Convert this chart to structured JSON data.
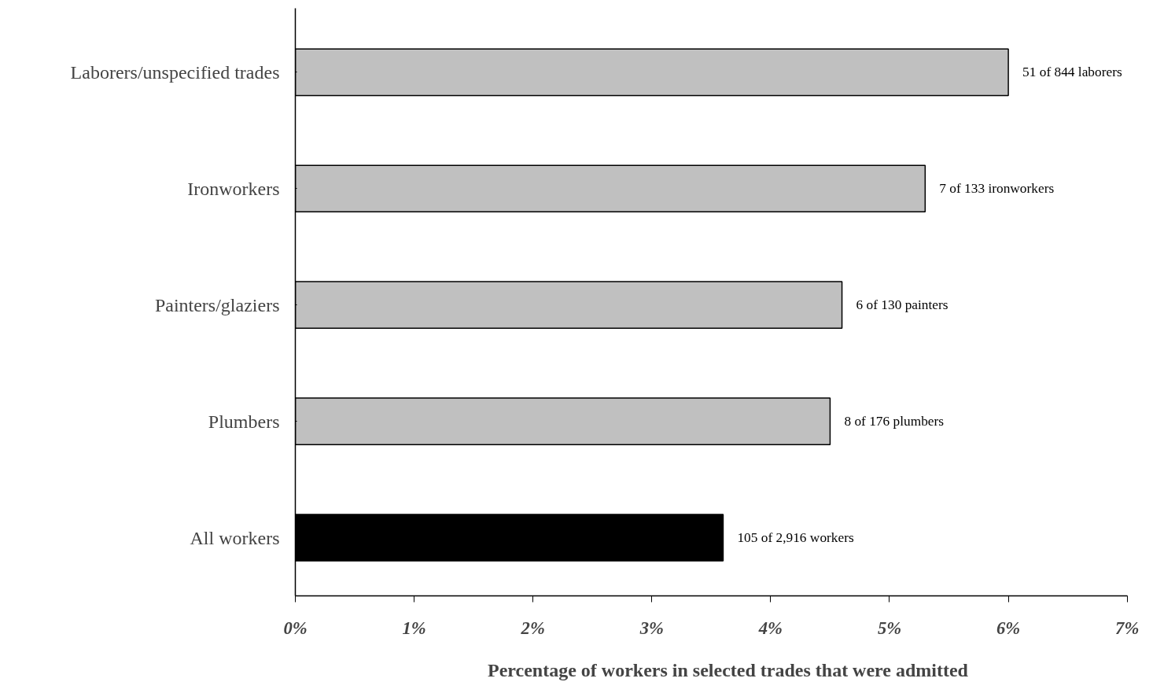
{
  "chart_data": {
    "type": "bar",
    "orientation": "horizontal",
    "xlabel": "Percentage of workers in selected trades that were admitted",
    "categories": [
      "Laborers/unspecified trades",
      "Ironworkers",
      "Painters/glaziers",
      "Plumbers",
      "All workers"
    ],
    "values": [
      6.0,
      5.3,
      4.6,
      4.5,
      3.6
    ],
    "colors": [
      "#c0c0c0",
      "#c0c0c0",
      "#c0c0c0",
      "#c0c0c0",
      "#000000"
    ],
    "annotations": [
      {
        "text": "51 of 844 laborers",
        "x": 6.0,
        "y": "Laborers/unspecified trades"
      },
      {
        "text": "7 of 133 ironworkers",
        "x": 5.3,
        "y": "Ironworkers"
      },
      {
        "text": "6 of 130  painters",
        "x": 4.6,
        "y": "Painters/glaziers"
      },
      {
        "text": "8 of 176 plumbers",
        "x": 4.5,
        "y": "Plumbers"
      },
      {
        "text": "105 of 2,916 workers",
        "x": 3.6,
        "y": "All workers"
      }
    ],
    "xlim": [
      0,
      7
    ],
    "xticks": [
      {
        "value": 0,
        "label": "0%"
      },
      {
        "value": 1,
        "label": "1%"
      },
      {
        "value": 2,
        "label": "2%"
      },
      {
        "value": 3,
        "label": "3%"
      },
      {
        "value": 4,
        "label": "4%"
      },
      {
        "value": 5,
        "label": "5%"
      },
      {
        "value": 6,
        "label": "6%"
      },
      {
        "value": 7,
        "label": "7%"
      }
    ],
    "grid": false
  }
}
